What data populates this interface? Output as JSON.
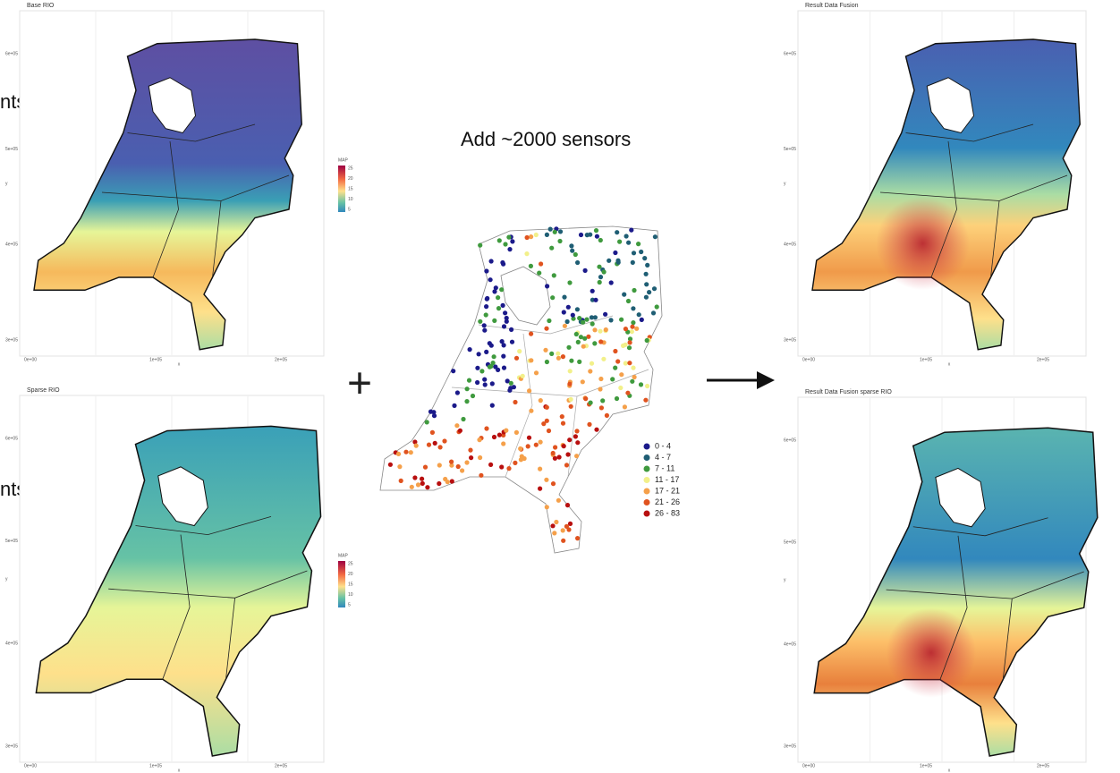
{
  "panels": [
    {
      "title": "Base RIO",
      "x_label": "x",
      "y_label": "y",
      "x_ticks": [
        "0e+00",
        "1e+05",
        "2e+05"
      ],
      "y_ticks": [
        "6e+05",
        "5e+05",
        "4e+05",
        "3e+05"
      ],
      "legend": {
        "title": "MAP",
        "ticks": [
          25,
          20,
          15,
          10,
          5
        ]
      }
    },
    {
      "title": "Sparse RIO",
      "x_label": "x",
      "y_label": "y",
      "x_ticks": [
        "0e+00",
        "1e+05",
        "2e+05"
      ],
      "y_ticks": [
        "6e+05",
        "5e+05",
        "4e+05",
        "3e+05"
      ],
      "legend": {
        "title": "MAP",
        "ticks": [
          25,
          20,
          15,
          10,
          5
        ]
      }
    },
    {
      "title": "Result Data Fusion",
      "x_label": "x",
      "y_label": "y",
      "x_ticks": [
        "0e+00",
        "1e+05",
        "2e+05"
      ],
      "y_ticks": [
        "6e+05",
        "5e+05",
        "4e+05",
        "3e+05"
      ]
    },
    {
      "title": "Result Data Fusion sparse RIO",
      "x_label": "x",
      "y_label": "y",
      "x_ticks": [
        "0e+00",
        "1e+05",
        "2e+05"
      ],
      "y_ticks": [
        "6e+05",
        "5e+05",
        "4e+05",
        "3e+05"
      ]
    }
  ],
  "side_labels": [
    "nts",
    "nts"
  ],
  "center": {
    "title": "Add ~2000 sensors",
    "plus": "+",
    "legend": [
      {
        "label": "0 - 4",
        "color": "#1b1a8a"
      },
      {
        "label": "4 - 7",
        "color": "#1f5e74"
      },
      {
        "label": "7 - 11",
        "color": "#3f9a3e"
      },
      {
        "label": "11 - 17",
        "color": "#f2f08a"
      },
      {
        "label": "17 - 21",
        "color": "#f5a04a"
      },
      {
        "label": "21 - 26",
        "color": "#e0531f"
      },
      {
        "label": "26 - 83",
        "color": "#b80f0f"
      }
    ]
  }
}
